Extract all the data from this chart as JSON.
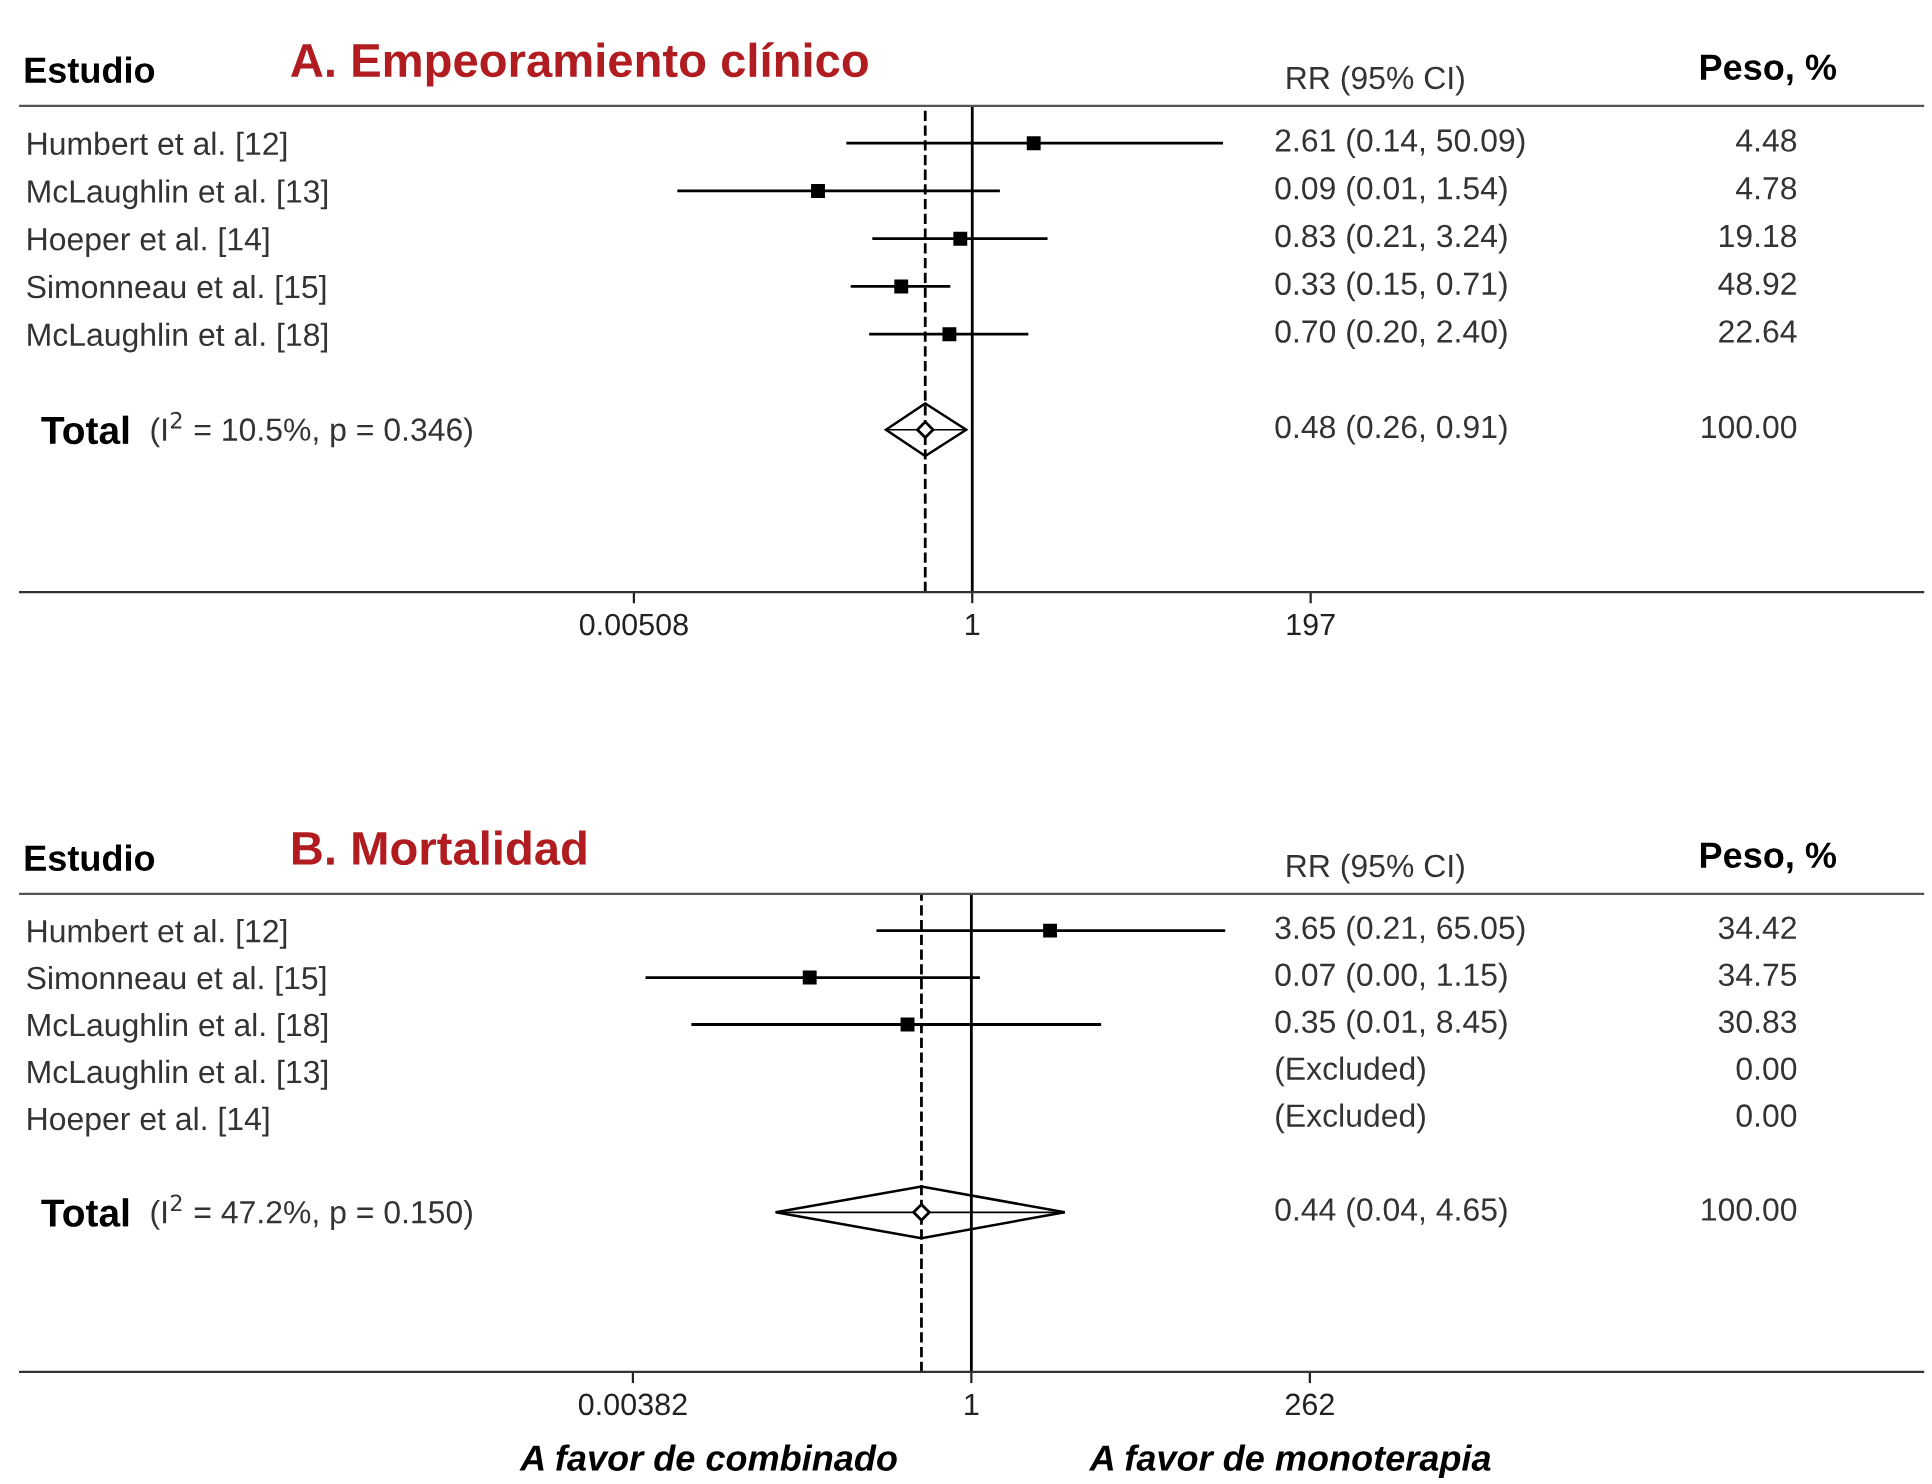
{
  "chart_data": [
    {
      "type": "scatter",
      "orientation": "horizontal",
      "title": "A. Empeoramiento clínico",
      "categories": [
        "Humbert et al. [12]",
        "McLaughlin et al. [13]",
        "Hoeper et al. [14]",
        "Simonneau et al. [15]",
        "McLaughlin et al. [18]",
        null,
        "Total"
      ],
      "series": [
        {
          "marker": "square",
          "color": "#000000",
          "values": [
            2.61,
            0.09,
            0.83,
            0.33,
            0.7,
            null,
            null
          ],
          "errors": [
            [
              0.14,
              50.09
            ],
            [
              0.01,
              1.54
            ],
            [
              0.21,
              3.24
            ],
            [
              0.15,
              0.71
            ],
            [
              0.2,
              2.4
            ],
            null,
            null
          ]
        },
        {
          "marker": "diamond",
          "color": "#000000",
          "values": [
            null,
            null,
            null,
            null,
            null,
            null,
            0.48
          ],
          "errors": [
            null,
            null,
            null,
            null,
            null,
            null,
            [
              0.26,
              0.91
            ]
          ]
        }
      ],
      "xlim": [
        3.5e-07,
        2800000.0
      ],
      "xticks": [
        0.00508,
        1,
        197
      ],
      "log": "x",
      "grid": false,
      "ref_lines": [
        {
          "axis": "x",
          "value": 1,
          "color": "#000000",
          "line_style": "solid"
        },
        {
          "axis": "x",
          "value": 0.48,
          "color": "#000000",
          "line_style": "dashed"
        }
      ],
      "annotations": [
        "Estudio",
        "RR (95% CI)",
        "Peso, %",
        "(I$^{2}$ = 10.5%, p = 0.346)",
        "2.61 (0.14, 50.09)",
        "0.09 (0.01, 1.54)",
        "0.83 (0.21, 3.24)",
        "0.33 (0.15, 0.71)",
        "0.70 (0.20, 2.40)",
        "0.48 (0.26, 0.91)",
        "4.48",
        "4.78",
        "19.18",
        "48.92",
        "22.64",
        "100.00"
      ]
    },
    {
      "type": "scatter",
      "orientation": "horizontal",
      "title": "B. Mortalidad",
      "categories": [
        "Humbert et al. [12]",
        "Simonneau et al. [15]",
        "McLaughlin et al. [18]",
        "McLaughlin et al. [13]",
        "Hoeper et al. [14]",
        null,
        "Total"
      ],
      "series": [
        {
          "marker": "square",
          "color": "#000000",
          "values": [
            3.65,
            0.07,
            0.35,
            null,
            null,
            null,
            null
          ],
          "errors": [
            [
              0.21,
              65.05
            ],
            [
              0.0047,
              1.15
            ],
            [
              0.01,
              8.45
            ],
            null,
            null,
            null,
            null
          ]
        },
        {
          "marker": "diamond",
          "color": "#000000",
          "values": [
            null,
            null,
            null,
            null,
            null,
            null,
            0.44
          ],
          "errors": [
            null,
            null,
            null,
            null,
            null,
            null,
            [
              0.04,
              4.65
            ]
          ]
        }
      ],
      "xlim": [
        1.6e-07,
        6300000.0
      ],
      "xticks": [
        0.00382,
        1,
        262
      ],
      "log": "x",
      "grid": false,
      "ref_lines": [
        {
          "axis": "x",
          "value": 1,
          "color": "#000000",
          "line_style": "solid"
        },
        {
          "axis": "x",
          "value": 0.44,
          "color": "#000000",
          "line_style": "dashed"
        }
      ],
      "annotations": [
        "Estudio",
        "RR (95% CI)",
        "Peso, %",
        "(I$^{2}$ = 47.2%, p = 0.150)",
        "3.65 (0.21, 65.05)",
        "0.07 (0.00, 1.15)",
        "0.35 (0.01, 8.45)",
        "(Excluded)",
        "(Excluded)",
        "0.44 (0.04, 4.65)",
        "34.42",
        "34.75",
        "30.83",
        "0.00",
        "0.00",
        "100.00",
        "A favor de combinado",
        "A favor de monoterapia"
      ]
    }
  ]
}
